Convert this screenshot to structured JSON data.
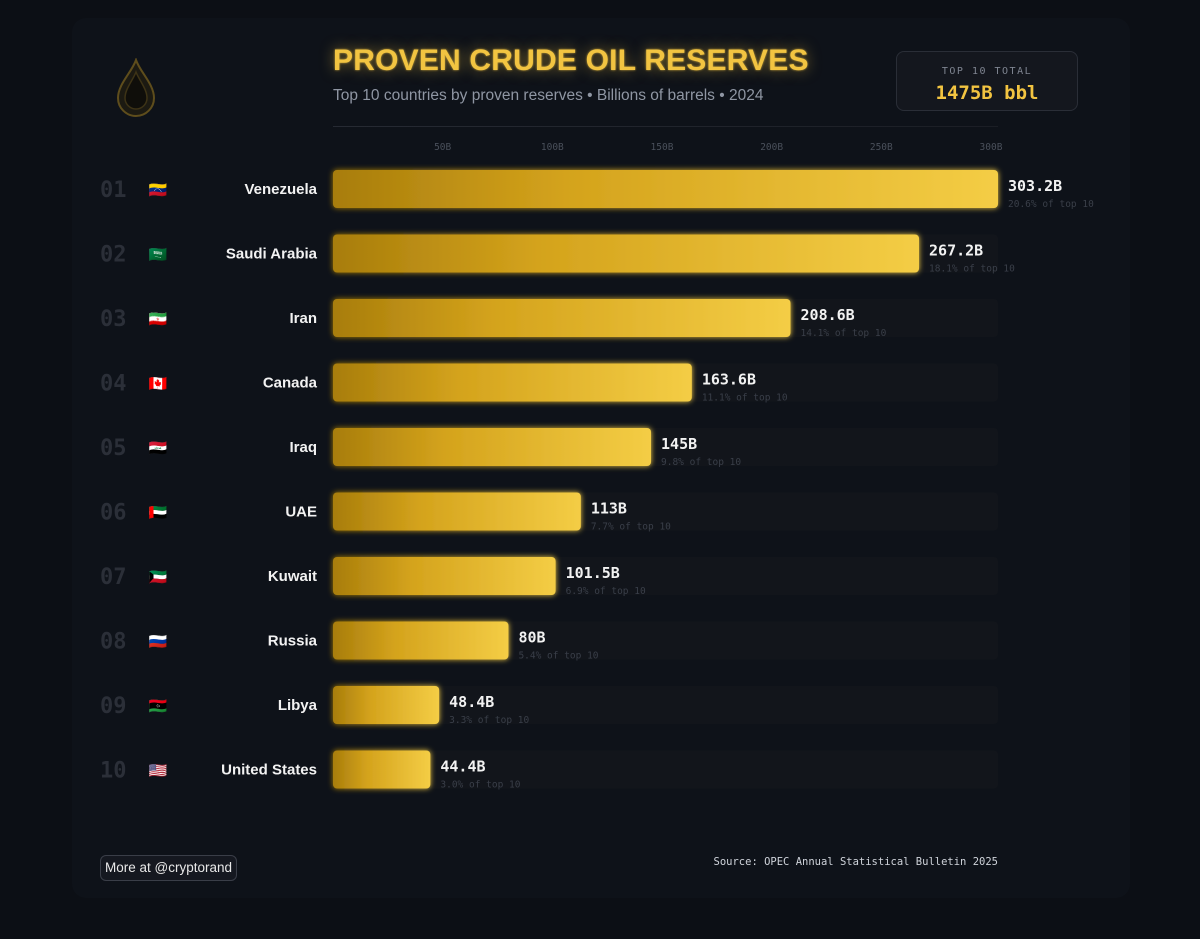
{
  "header": {
    "title": "PROVEN CRUDE OIL RESERVES",
    "subtitle": "Top 10 countries by proven reserves • Billions of barrels • 2024",
    "total_label": "TOP 10 TOTAL",
    "total_value": "1475B bbl"
  },
  "footer": {
    "more_label": "More at @cryptorand",
    "source": "Source: OPEC Annual Statistical Bulletin 2025"
  },
  "icons": {
    "logo": "oil-drop-icon"
  },
  "colors": {
    "background": "#0c0f15",
    "accent": "#f2c441",
    "bar_dark": "#a87d0c",
    "bar_light": "#f4cd45",
    "track": "#12151b",
    "rank": "#2b2f38",
    "muted": "#3a3f49"
  },
  "chart_data": {
    "type": "bar",
    "orientation": "horizontal",
    "title": "PROVEN CRUDE OIL RESERVES",
    "xlim": [
      0,
      303.2
    ],
    "tick_values": [
      50,
      100,
      150,
      200,
      250,
      300
    ],
    "tick_labels": [
      "50B",
      "100B",
      "150B",
      "200B",
      "250B",
      "300B"
    ],
    "rows": [
      {
        "rank": "01",
        "flag": "🇻🇪",
        "country": "Venezuela",
        "value": 303.2,
        "value_label": "303.2B",
        "share_label": "20.6% of top 10"
      },
      {
        "rank": "02",
        "flag": "🇸🇦",
        "country": "Saudi Arabia",
        "value": 267.2,
        "value_label": "267.2B",
        "share_label": "18.1% of top 10"
      },
      {
        "rank": "03",
        "flag": "🇮🇷",
        "country": "Iran",
        "value": 208.6,
        "value_label": "208.6B",
        "share_label": "14.1% of top 10"
      },
      {
        "rank": "04",
        "flag": "🇨🇦",
        "country": "Canada",
        "value": 163.6,
        "value_label": "163.6B",
        "share_label": "11.1% of top 10"
      },
      {
        "rank": "05",
        "flag": "🇮🇶",
        "country": "Iraq",
        "value": 145,
        "value_label": "145B",
        "share_label": "9.8% of top 10"
      },
      {
        "rank": "06",
        "flag": "🇦🇪",
        "country": "UAE",
        "value": 113,
        "value_label": "113B",
        "share_label": "7.7% of top 10"
      },
      {
        "rank": "07",
        "flag": "🇰🇼",
        "country": "Kuwait",
        "value": 101.5,
        "value_label": "101.5B",
        "share_label": "6.9% of top 10"
      },
      {
        "rank": "08",
        "flag": "🇷🇺",
        "country": "Russia",
        "value": 80,
        "value_label": "80B",
        "share_label": "5.4% of top 10"
      },
      {
        "rank": "09",
        "flag": "🇱🇾",
        "country": "Libya",
        "value": 48.4,
        "value_label": "48.4B",
        "share_label": "3.3% of top 10"
      },
      {
        "rank": "10",
        "flag": "🇺🇸",
        "country": "United States",
        "value": 44.4,
        "value_label": "44.4B",
        "share_label": "3.0% of top 10"
      }
    ]
  }
}
